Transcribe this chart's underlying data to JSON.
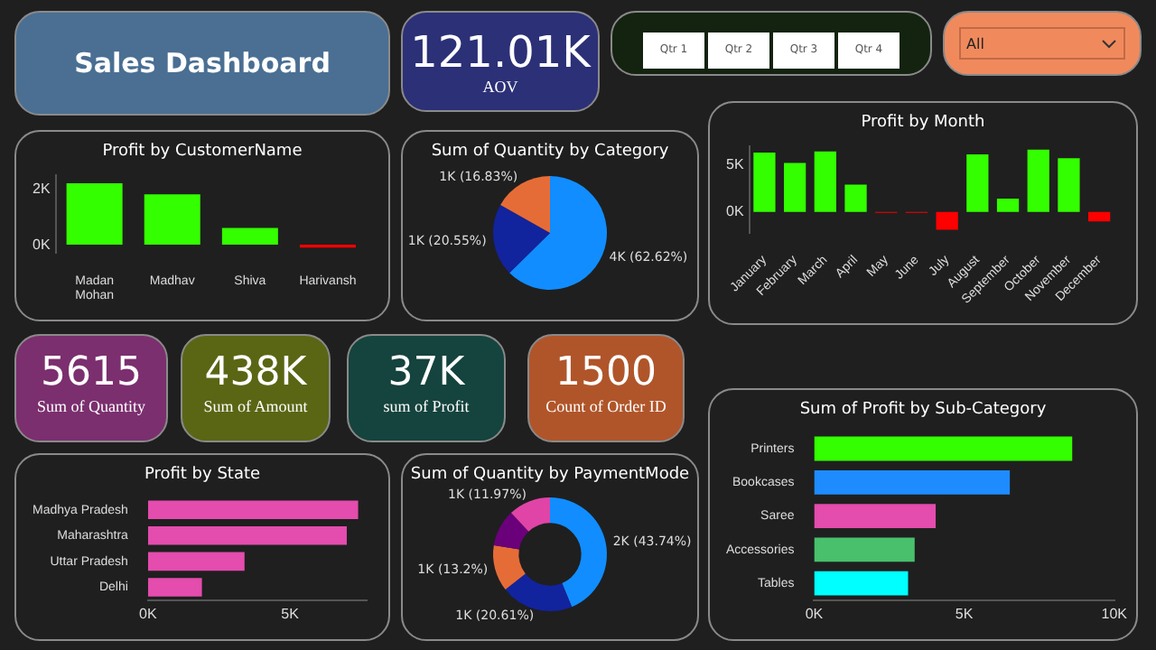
{
  "chart_data": [
    {
      "type": "other",
      "title": "Sales Dashboard"
    },
    {
      "type": "other",
      "title": "AOV",
      "annotations": [
        "121.01K"
      ]
    },
    {
      "type": "other",
      "annotations": [
        "Qtr 1",
        "Qtr 2",
        "Qtr 3",
        "Qtr 4"
      ]
    },
    {
      "type": "other",
      "annotations": [
        "All"
      ]
    },
    {
      "type": "bar",
      "title": "Profit by CustomerName",
      "categories": [
        "Madan Mohan",
        "Madhav",
        "Shiva",
        "Harivansh"
      ],
      "values": [
        2.2,
        1.8,
        0.6,
        -0.1
      ],
      "colors": [
        "#33ff00",
        "#33ff00",
        "#33ff00",
        "#ff0000"
      ],
      "ylim": [
        -0.3,
        2.5
      ],
      "yticks": [
        {
          "value": 0,
          "label": "0K"
        },
        {
          "value": 2,
          "label": "2K"
        }
      ]
    },
    {
      "type": "pie",
      "title": "Sum of Quantity by Category",
      "categories": [
        null,
        null,
        null
      ],
      "values": [
        62.62,
        20.55,
        16.83
      ],
      "colors": [
        "#118dff",
        "#12239e",
        "#e66c37"
      ],
      "value_labels": [
        "4K (62.62%)",
        "1K (20.55%)",
        "1K (16.83%)"
      ]
    },
    {
      "type": "bar",
      "title": "Profit by Month",
      "categories": [
        "January",
        "February",
        "March",
        "April",
        "May",
        "June",
        "July",
        "August",
        "September",
        "October",
        "November",
        "December"
      ],
      "values": [
        6.3,
        5.2,
        6.4,
        2.9,
        -0.1,
        -0.1,
        -1.9,
        6.1,
        1.4,
        6.6,
        5.7,
        -1
      ],
      "colors": [
        "#33ff00",
        "#33ff00",
        "#33ff00",
        "#33ff00",
        "#ff0000",
        "#ff0000",
        "#ff0000",
        "#33ff00",
        "#33ff00",
        "#33ff00",
        "#33ff00",
        "#ff0000"
      ],
      "ylim": [
        -2.2,
        7
      ],
      "yticks": [
        {
          "value": 0,
          "label": "0K"
        },
        {
          "value": 5,
          "label": "5K"
        }
      ]
    },
    {
      "type": "other",
      "title": "Sum of Quantity",
      "annotations": [
        "5615"
      ]
    },
    {
      "type": "other",
      "title": "Sum of Amount",
      "annotations": [
        "438K"
      ]
    },
    {
      "type": "other",
      "title": "sum of Profit",
      "annotations": [
        "37K"
      ]
    },
    {
      "type": "other",
      "title": "Count of Order ID",
      "annotations": [
        "1500"
      ]
    },
    {
      "type": "bar",
      "orientation": "horizontal",
      "title": "Profit by State",
      "categories": [
        "Madhya Pradesh",
        "Maharashtra",
        "Uttar Pradesh",
        "Delhi"
      ],
      "values": [
        7.4,
        7,
        3.4,
        1.9
      ],
      "color": "#e44cae",
      "xlim": [
        0,
        7.7
      ],
      "xticks": [
        {
          "value": 0,
          "label": "0K"
        },
        {
          "value": 5,
          "label": "5K"
        }
      ]
    },
    {
      "type": "donut",
      "title": "Sum of Quantity by PaymentMode",
      "categories": [
        null,
        null,
        null,
        null,
        null
      ],
      "values": [
        43.74,
        20.61,
        13.2,
        10.48,
        11.97
      ],
      "colors": [
        "#118dff",
        "#12239e",
        "#e66c37",
        "#6b007b",
        "#e044a7"
      ],
      "value_labels": [
        "2K (43.74%)",
        "1K (20.61%)",
        "1K (13.2%)",
        null,
        "1K (11.97%)"
      ]
    },
    {
      "type": "bar",
      "orientation": "horizontal",
      "title": "Sum of Profit by Sub-Category",
      "categories": [
        "Printers",
        "Bookcases",
        "Saree",
        "Accessories",
        "Tables"
      ],
      "values": [
        8.6,
        6.52,
        4.05,
        3.35,
        3.13
      ],
      "colors": [
        "#33ff00",
        "#1e8cff",
        "#e44cae",
        "#48c06c",
        "#00ffff"
      ],
      "xlim": [
        0,
        10
      ],
      "xticks": [
        {
          "value": 0,
          "label": "0K"
        },
        {
          "value": 5,
          "label": "5K"
        },
        {
          "value": 10,
          "label": "10K"
        }
      ]
    }
  ]
}
